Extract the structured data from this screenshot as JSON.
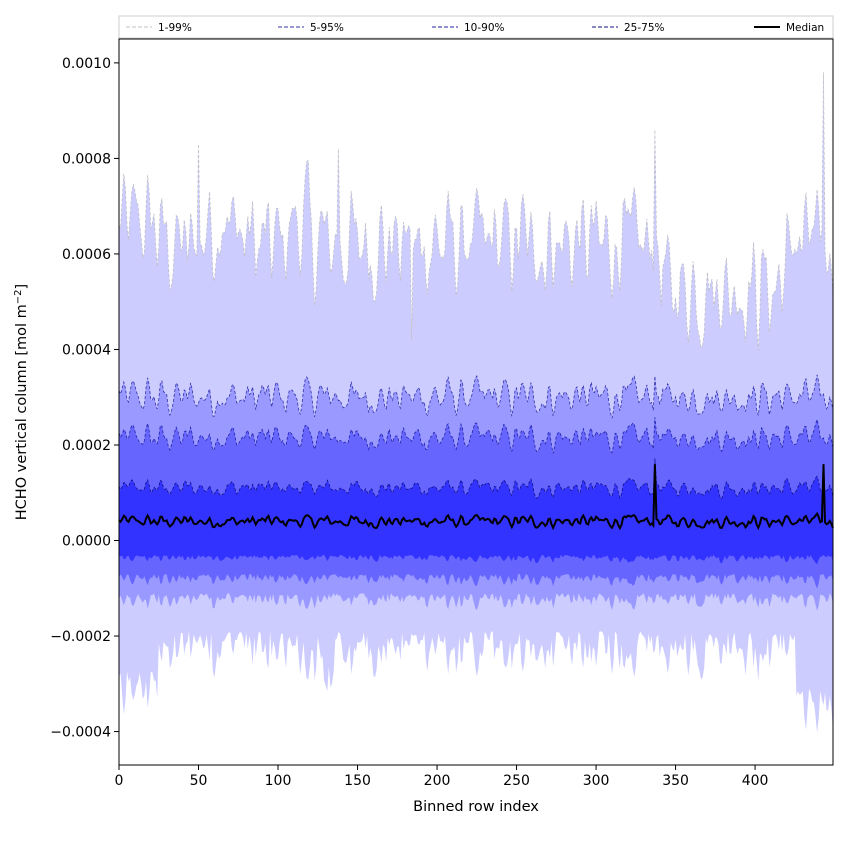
{
  "chart_data": {
    "type": "area",
    "xlabel": "Binned row index",
    "ylabel": "HCHO vertical column [mol m",
    "ylabel_sup": "−2",
    "ylabel_close": "]",
    "xlim": [
      0,
      449
    ],
    "ylim": [
      -0.00047,
      0.00105
    ],
    "x_ticks": [
      0,
      50,
      100,
      150,
      200,
      250,
      300,
      350,
      400
    ],
    "x_tick_labels": [
      "0",
      "50",
      "100",
      "150",
      "200",
      "250",
      "300",
      "350",
      "400"
    ],
    "y_ticks": [
      -0.0004,
      -0.0002,
      0.0,
      0.0002,
      0.0004,
      0.0006,
      0.0008,
      0.001
    ],
    "y_tick_labels": [
      "−0.0004",
      "−0.0002",
      "0.0000",
      "0.0002",
      "0.0004",
      "0.0006",
      "0.0008",
      "0.0010"
    ],
    "legend_position": "top",
    "series": [
      {
        "name": "1-99%",
        "kind": "band",
        "color": "#ccccff",
        "line": "#c0c0c8",
        "upper_base": 0.00062,
        "lower_base": -0.00019,
        "amp": 9e-05
      },
      {
        "name": "5-95%",
        "kind": "band",
        "color": "#9999ff",
        "line": "#3333aa",
        "upper_base": 0.0003,
        "lower_base": -0.00011,
        "amp": 3e-05
      },
      {
        "name": "10-90%",
        "kind": "band",
        "color": "#6666ff",
        "line": "#2222aa",
        "upper_base": 0.000215,
        "lower_base": -7e-05,
        "amp": 2.2e-05
      },
      {
        "name": "25-75%",
        "kind": "band",
        "color": "#3333ff",
        "line": "#111188",
        "upper_base": 0.00011,
        "lower_base": -3e-05,
        "amp": 1.5e-05
      },
      {
        "name": "Median",
        "kind": "line",
        "color": "#000000",
        "base": 4e-05,
        "amp": 1.2e-05
      }
    ],
    "spikes": [
      {
        "x": 50,
        "value": 0.00083
      },
      {
        "x": 138,
        "value": 0.00082
      },
      {
        "x": 184,
        "value": 0.00042
      },
      {
        "x": 337,
        "value": 0.00086
      },
      {
        "x": 443,
        "value": 0.00098
      }
    ]
  }
}
